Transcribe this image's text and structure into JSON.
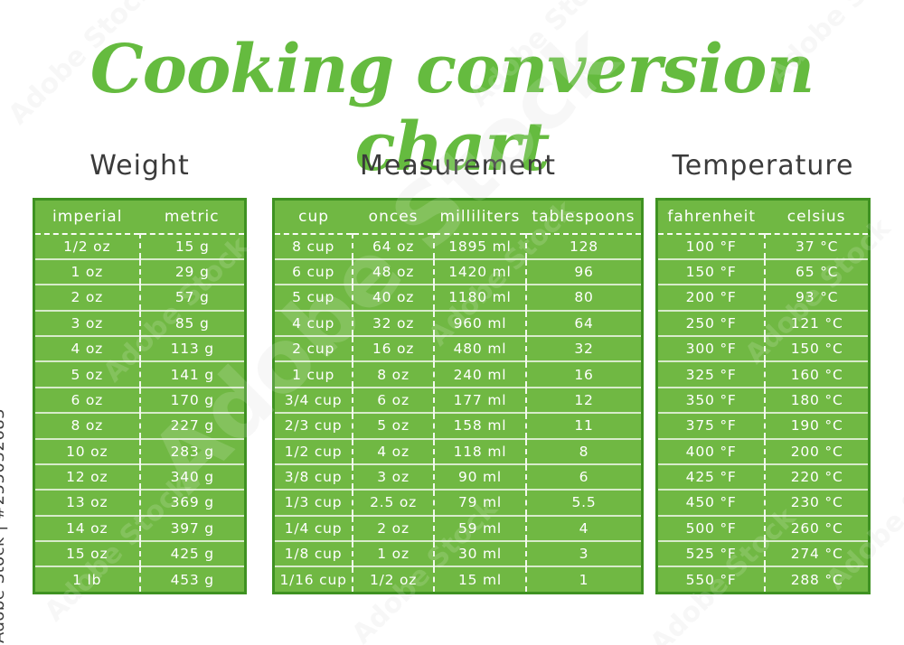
{
  "page": {
    "title": "Cooking conversion chart"
  },
  "watermark": {
    "brand": "Adobe Stock",
    "credit": "Adobe Stock | #255032683"
  },
  "colors": {
    "title_green": "#65bb3f",
    "table_fill": "#70b843",
    "table_border": "#3f9222",
    "heading_text": "#3b3b3b",
    "cell_text": "#ffffff"
  },
  "chart_data": [
    {
      "type": "table",
      "title": "Weight",
      "columns": [
        "imperial",
        "metric"
      ],
      "rows": [
        [
          "1/2 oz",
          "15 g"
        ],
        [
          "1 oz",
          "29 g"
        ],
        [
          "2 oz",
          "57 g"
        ],
        [
          "3 oz",
          "85 g"
        ],
        [
          "4 oz",
          "113 g"
        ],
        [
          "5 oz",
          "141 g"
        ],
        [
          "6 oz",
          "170 g"
        ],
        [
          "8 oz",
          "227 g"
        ],
        [
          "10 oz",
          "283 g"
        ],
        [
          "12 oz",
          "340 g"
        ],
        [
          "13 oz",
          "369 g"
        ],
        [
          "14 oz",
          "397 g"
        ],
        [
          "15 oz",
          "425 g"
        ],
        [
          "1 lb",
          "453 g"
        ]
      ]
    },
    {
      "type": "table",
      "title": "Measurement",
      "columns": [
        "cup",
        "onces",
        "milliliters",
        "tablespoons"
      ],
      "rows": [
        [
          "8 cup",
          "64 oz",
          "1895 ml",
          "128"
        ],
        [
          "6 cup",
          "48 oz",
          "1420 ml",
          "96"
        ],
        [
          "5 cup",
          "40 oz",
          "1180 ml",
          "80"
        ],
        [
          "4 cup",
          "32 oz",
          "960 ml",
          "64"
        ],
        [
          "2 cup",
          "16 oz",
          "480 ml",
          "32"
        ],
        [
          "1 cup",
          "8 oz",
          "240 ml",
          "16"
        ],
        [
          "3/4 cup",
          "6 oz",
          "177 ml",
          "12"
        ],
        [
          "2/3 cup",
          "5 oz",
          "158 ml",
          "11"
        ],
        [
          "1/2 cup",
          "4 oz",
          "118 ml",
          "8"
        ],
        [
          "3/8 cup",
          "3 oz",
          "90 ml",
          "6"
        ],
        [
          "1/3 cup",
          "2.5 oz",
          "79 ml",
          "5.5"
        ],
        [
          "1/4 cup",
          "2 oz",
          "59 ml",
          "4"
        ],
        [
          "1/8 cup",
          "1 oz",
          "30 ml",
          "3"
        ],
        [
          "1/16 cup",
          "1/2 oz",
          "15 ml",
          "1"
        ]
      ]
    },
    {
      "type": "table",
      "title": "Temperature",
      "columns": [
        "fahrenheit",
        "celsius"
      ],
      "rows": [
        [
          "100 °F",
          "37 °C"
        ],
        [
          "150 °F",
          "65 °C"
        ],
        [
          "200 °F",
          "93 °C"
        ],
        [
          "250 °F",
          "121 °C"
        ],
        [
          "300 °F",
          "150 °C"
        ],
        [
          "325 °F",
          "160 °C"
        ],
        [
          "350 °F",
          "180 °C"
        ],
        [
          "375 °F",
          "190 °C"
        ],
        [
          "400 °F",
          "200 °C"
        ],
        [
          "425 °F",
          "220 °C"
        ],
        [
          "450 °F",
          "230 °C"
        ],
        [
          "500 °F",
          "260 °C"
        ],
        [
          "525 °F",
          "274 °C"
        ],
        [
          "550 °F",
          "288 °C"
        ]
      ]
    }
  ]
}
